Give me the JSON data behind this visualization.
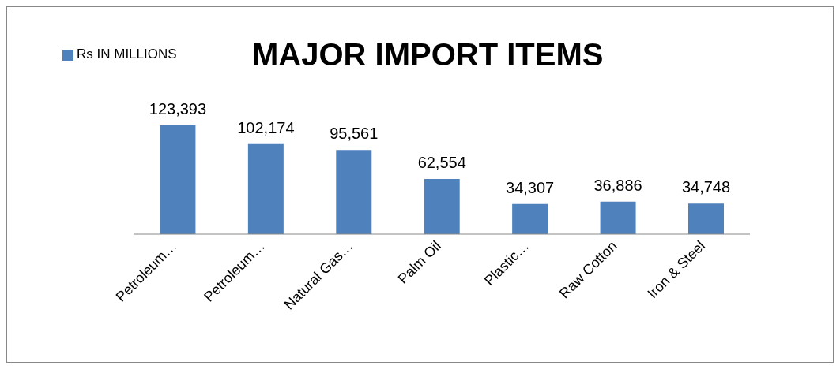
{
  "chart_data": {
    "type": "bar",
    "title": "MAJOR IMPORT ITEMS",
    "categories": [
      "Petroleum…",
      "Petroleum…",
      "Natural Gas…",
      "Palm Oil",
      "Plastic…",
      "Raw Cotton",
      "Iron & Steel"
    ],
    "series": [
      {
        "name": "Rs IN MILLIONS",
        "color": "#4f81bd",
        "values": [
          123393,
          102174,
          95561,
          62554,
          34307,
          36886,
          34748
        ],
        "value_labels": [
          "123,393",
          "102,174",
          "95,561",
          "62,554",
          "34,307",
          "36,886",
          "34,748"
        ]
      }
    ],
    "legend": "top left"
  }
}
